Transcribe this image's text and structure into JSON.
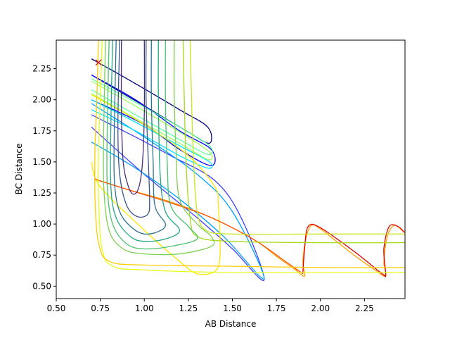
{
  "chart_data": {
    "type": "contour",
    "title": "",
    "xlabel": "AB Distance",
    "ylabel": "BC Distance",
    "xlim": [
      0.5,
      2.48
    ],
    "ylim": [
      0.4,
      2.48
    ],
    "grid": false,
    "x_ticks": [
      0.5,
      0.75,
      1.0,
      1.25,
      1.5,
      1.75,
      2.0,
      2.25
    ],
    "x_tick_labels": [
      "0.50",
      "0.75",
      "1.00",
      "1.25",
      "1.50",
      "1.75",
      "2.00",
      "2.25"
    ],
    "y_ticks": [
      0.5,
      0.75,
      1.0,
      1.25,
      1.5,
      1.75,
      2.0,
      2.25
    ],
    "y_tick_labels": [
      "0.50",
      "0.75",
      "1.00",
      "1.25",
      "1.50",
      "1.75",
      "2.00",
      "2.25"
    ],
    "marker": {
      "x": 0.74,
      "y": 2.3,
      "symbol": "x",
      "color": "#d62728"
    },
    "contours": [
      {
        "color": "#00007f",
        "points": [
          [
            0.7,
            2.33
          ],
          [
            0.95,
            2.13
          ],
          [
            1.2,
            1.92
          ],
          [
            1.36,
            1.78
          ],
          [
            1.37,
            1.65
          ],
          [
            1.25,
            1.74
          ],
          [
            1.0,
            1.95
          ],
          [
            0.7,
            2.2
          ]
        ]
      },
      {
        "color": "#0000ff",
        "points": [
          [
            0.7,
            2.2
          ],
          [
            0.95,
            2.0
          ],
          [
            1.2,
            1.75
          ],
          [
            1.38,
            1.6
          ],
          [
            1.38,
            1.47
          ],
          [
            1.2,
            1.6
          ],
          [
            1.0,
            1.8
          ],
          [
            0.7,
            2.0
          ]
        ]
      },
      {
        "color": "#3f3fff",
        "points": [
          [
            0.7,
            1.88
          ],
          [
            0.95,
            1.7
          ],
          [
            1.15,
            1.55
          ],
          [
            1.4,
            1.35
          ],
          [
            1.55,
            1.05
          ],
          [
            1.68,
            0.55
          ],
          [
            1.5,
            0.8
          ],
          [
            1.3,
            1.05
          ],
          [
            1.0,
            1.4
          ],
          [
            0.7,
            1.78
          ]
        ]
      },
      {
        "color": "#00a2ff",
        "points": [
          [
            0.7,
            1.97
          ],
          [
            1.0,
            1.7
          ],
          [
            1.3,
            1.4
          ],
          [
            1.5,
            1.1
          ],
          [
            1.68,
            0.56
          ],
          [
            1.45,
            0.9
          ],
          [
            1.2,
            1.2
          ],
          [
            0.95,
            1.45
          ],
          [
            0.7,
            1.66
          ]
        ]
      },
      {
        "color": "#00e5ff",
        "points": [
          [
            0.7,
            2.0
          ],
          [
            0.95,
            1.82
          ],
          [
            1.2,
            1.63
          ],
          [
            1.37,
            1.5
          ],
          [
            1.36,
            1.45
          ],
          [
            1.2,
            1.55
          ],
          [
            0.95,
            1.75
          ],
          [
            0.7,
            1.92
          ]
        ]
      },
      {
        "color": "#5fff9f",
        "points": [
          [
            0.7,
            2.17
          ],
          [
            0.95,
            1.98
          ],
          [
            1.2,
            1.78
          ],
          [
            1.37,
            1.63
          ],
          [
            1.36,
            1.56
          ],
          [
            1.2,
            1.68
          ],
          [
            0.95,
            1.88
          ],
          [
            0.7,
            2.08
          ]
        ]
      },
      {
        "color": "#a0ff5f",
        "points": [
          [
            0.7,
            2.15
          ],
          [
            0.95,
            1.95
          ],
          [
            1.2,
            1.74
          ],
          [
            1.37,
            1.58
          ],
          [
            1.36,
            1.52
          ],
          [
            1.2,
            1.65
          ],
          [
            0.95,
            1.85
          ],
          [
            0.7,
            2.05
          ]
        ]
      },
      {
        "color": "#ffe500",
        "points": [
          [
            0.7,
            2.04
          ],
          [
            1.0,
            1.8
          ],
          [
            1.25,
            1.55
          ],
          [
            1.4,
            1.3
          ],
          [
            1.42,
            1.15
          ],
          [
            1.43,
            0.75
          ],
          [
            1.4,
            0.62
          ],
          [
            1.3,
            0.6
          ],
          [
            1.2,
            0.7
          ],
          [
            1.0,
            0.95
          ],
          [
            0.75,
            1.3
          ],
          [
            0.7,
            1.5
          ]
        ]
      },
      {
        "color": "#ff9f00",
        "points": [
          [
            0.72,
            1.36
          ],
          [
            0.9,
            1.28
          ],
          [
            1.1,
            1.2
          ],
          [
            1.3,
            1.1
          ],
          [
            1.5,
            0.97
          ],
          [
            1.65,
            0.85
          ],
          [
            1.75,
            0.74
          ],
          [
            1.85,
            0.64
          ],
          [
            1.91,
            0.58
          ],
          [
            1.9,
            0.7
          ],
          [
            1.92,
            0.9
          ],
          [
            1.95,
            0.99
          ],
          [
            2.0,
            0.96
          ],
          [
            2.1,
            0.85
          ],
          [
            2.2,
            0.74
          ],
          [
            2.3,
            0.64
          ],
          [
            2.37,
            0.58
          ],
          [
            2.36,
            0.7
          ],
          [
            2.38,
            0.9
          ],
          [
            2.42,
            0.99
          ],
          [
            2.47,
            0.94
          ]
        ]
      },
      {
        "color": "#ff4f00",
        "points": [
          [
            0.72,
            1.36
          ],
          [
            0.9,
            1.28
          ],
          [
            1.15,
            1.17
          ],
          [
            1.35,
            1.07
          ],
          [
            1.5,
            0.97
          ],
          [
            1.65,
            0.85
          ],
          [
            1.8,
            0.7
          ],
          [
            1.9,
            0.6
          ]
        ]
      },
      {
        "color": "#df0000",
        "points": [
          [
            1.9,
            0.6
          ],
          [
            1.91,
            0.8
          ],
          [
            1.93,
            0.98
          ],
          [
            2.0,
            0.97
          ],
          [
            2.2,
            0.77
          ],
          [
            2.35,
            0.6
          ],
          [
            2.37,
            0.6
          ],
          [
            2.36,
            0.8
          ],
          [
            2.39,
            0.98
          ],
          [
            2.44,
            0.98
          ],
          [
            2.48,
            0.93
          ]
        ]
      },
      {
        "color": "#e5ff19",
        "points": [
          [
            0.76,
            2.48
          ],
          [
            0.75,
            2.0
          ],
          [
            0.74,
            1.6
          ],
          [
            0.74,
            1.2
          ],
          [
            0.76,
            0.8
          ],
          [
            0.82,
            0.66
          ],
          [
            1.0,
            0.63
          ],
          [
            1.5,
            0.61
          ],
          [
            2.0,
            0.61
          ],
          [
            2.48,
            0.61
          ]
        ]
      },
      {
        "color": "#ffcc00",
        "points": [
          [
            0.74,
            2.48
          ],
          [
            0.73,
            2.0
          ],
          [
            0.72,
            1.6
          ],
          [
            0.72,
            1.2
          ],
          [
            0.74,
            0.85
          ],
          [
            0.8,
            0.7
          ],
          [
            1.0,
            0.67
          ],
          [
            1.5,
            0.66
          ],
          [
            2.0,
            0.65
          ],
          [
            2.48,
            0.65
          ]
        ]
      },
      {
        "color": "#c7e51a",
        "points": [
          [
            1.26,
            2.48
          ],
          [
            1.27,
            1.9
          ],
          [
            1.28,
            1.5
          ],
          [
            1.3,
            1.1
          ],
          [
            1.35,
            0.95
          ],
          [
            1.5,
            0.92
          ],
          [
            2.0,
            0.92
          ],
          [
            2.48,
            0.92
          ]
        ]
      },
      {
        "color": "#a5d91a",
        "points": [
          [
            1.22,
            2.48
          ],
          [
            1.23,
            1.8
          ],
          [
            1.24,
            1.4
          ],
          [
            1.26,
            1.05
          ],
          [
            1.3,
            0.9
          ],
          [
            1.5,
            0.86
          ],
          [
            2.0,
            0.85
          ],
          [
            2.48,
            0.85
          ]
        ]
      },
      {
        "color": "#7cd050",
        "points": [
          [
            0.78,
            2.48
          ],
          [
            0.77,
            1.8
          ],
          [
            0.77,
            1.3
          ],
          [
            0.8,
            0.95
          ],
          [
            0.88,
            0.8
          ],
          [
            1.0,
            0.76
          ],
          [
            1.2,
            0.76
          ],
          [
            1.38,
            0.82
          ],
          [
            1.38,
            0.9
          ],
          [
            1.3,
            1.0
          ],
          [
            1.2,
            1.2
          ],
          [
            1.18,
            1.6
          ],
          [
            1.17,
            2.0
          ],
          [
            1.17,
            2.48
          ]
        ]
      },
      {
        "color": "#49c16d",
        "points": [
          [
            0.8,
            2.48
          ],
          [
            0.79,
            1.8
          ],
          [
            0.79,
            1.3
          ],
          [
            0.82,
            1.0
          ],
          [
            0.9,
            0.84
          ],
          [
            1.0,
            0.8
          ],
          [
            1.15,
            0.82
          ],
          [
            1.3,
            0.88
          ],
          [
            1.25,
            0.98
          ],
          [
            1.15,
            1.15
          ],
          [
            1.13,
            1.5
          ],
          [
            1.12,
            2.0
          ],
          [
            1.12,
            2.48
          ]
        ]
      },
      {
        "color": "#21a685",
        "points": [
          [
            0.82,
            2.48
          ],
          [
            0.81,
            1.8
          ],
          [
            0.81,
            1.3
          ],
          [
            0.84,
            1.05
          ],
          [
            0.92,
            0.9
          ],
          [
            1.0,
            0.86
          ],
          [
            1.12,
            0.88
          ],
          [
            1.2,
            0.95
          ],
          [
            1.12,
            1.1
          ],
          [
            1.09,
            1.4
          ],
          [
            1.08,
            2.0
          ],
          [
            1.08,
            2.48
          ]
        ]
      },
      {
        "color": "#2c728e",
        "points": [
          [
            0.84,
            2.48
          ],
          [
            0.83,
            1.8
          ],
          [
            0.83,
            1.35
          ],
          [
            0.86,
            1.1
          ],
          [
            0.93,
            0.97
          ],
          [
            1.0,
            0.92
          ],
          [
            1.08,
            0.94
          ],
          [
            1.12,
            1.0
          ],
          [
            1.06,
            1.15
          ],
          [
            1.05,
            1.5
          ],
          [
            1.04,
            2.0
          ],
          [
            1.04,
            2.48
          ]
        ]
      },
      {
        "color": "#3b528b",
        "points": [
          [
            0.86,
            2.48
          ],
          [
            0.85,
            1.8
          ],
          [
            0.86,
            1.4
          ],
          [
            0.9,
            1.15
          ],
          [
            0.96,
            1.06
          ],
          [
            1.02,
            1.08
          ],
          [
            1.03,
            1.2
          ],
          [
            1.02,
            1.6
          ],
          [
            1.01,
            2.0
          ],
          [
            1.01,
            2.48
          ]
        ]
      },
      {
        "color": "#472d7b",
        "points": [
          [
            0.87,
            2.48
          ],
          [
            0.87,
            1.9
          ],
          [
            0.88,
            1.5
          ],
          [
            0.91,
            1.3
          ],
          [
            0.94,
            1.24
          ],
          [
            0.97,
            1.3
          ],
          [
            0.99,
            1.5
          ],
          [
            1.0,
            1.9
          ],
          [
            1.0,
            2.48
          ]
        ]
      }
    ]
  }
}
